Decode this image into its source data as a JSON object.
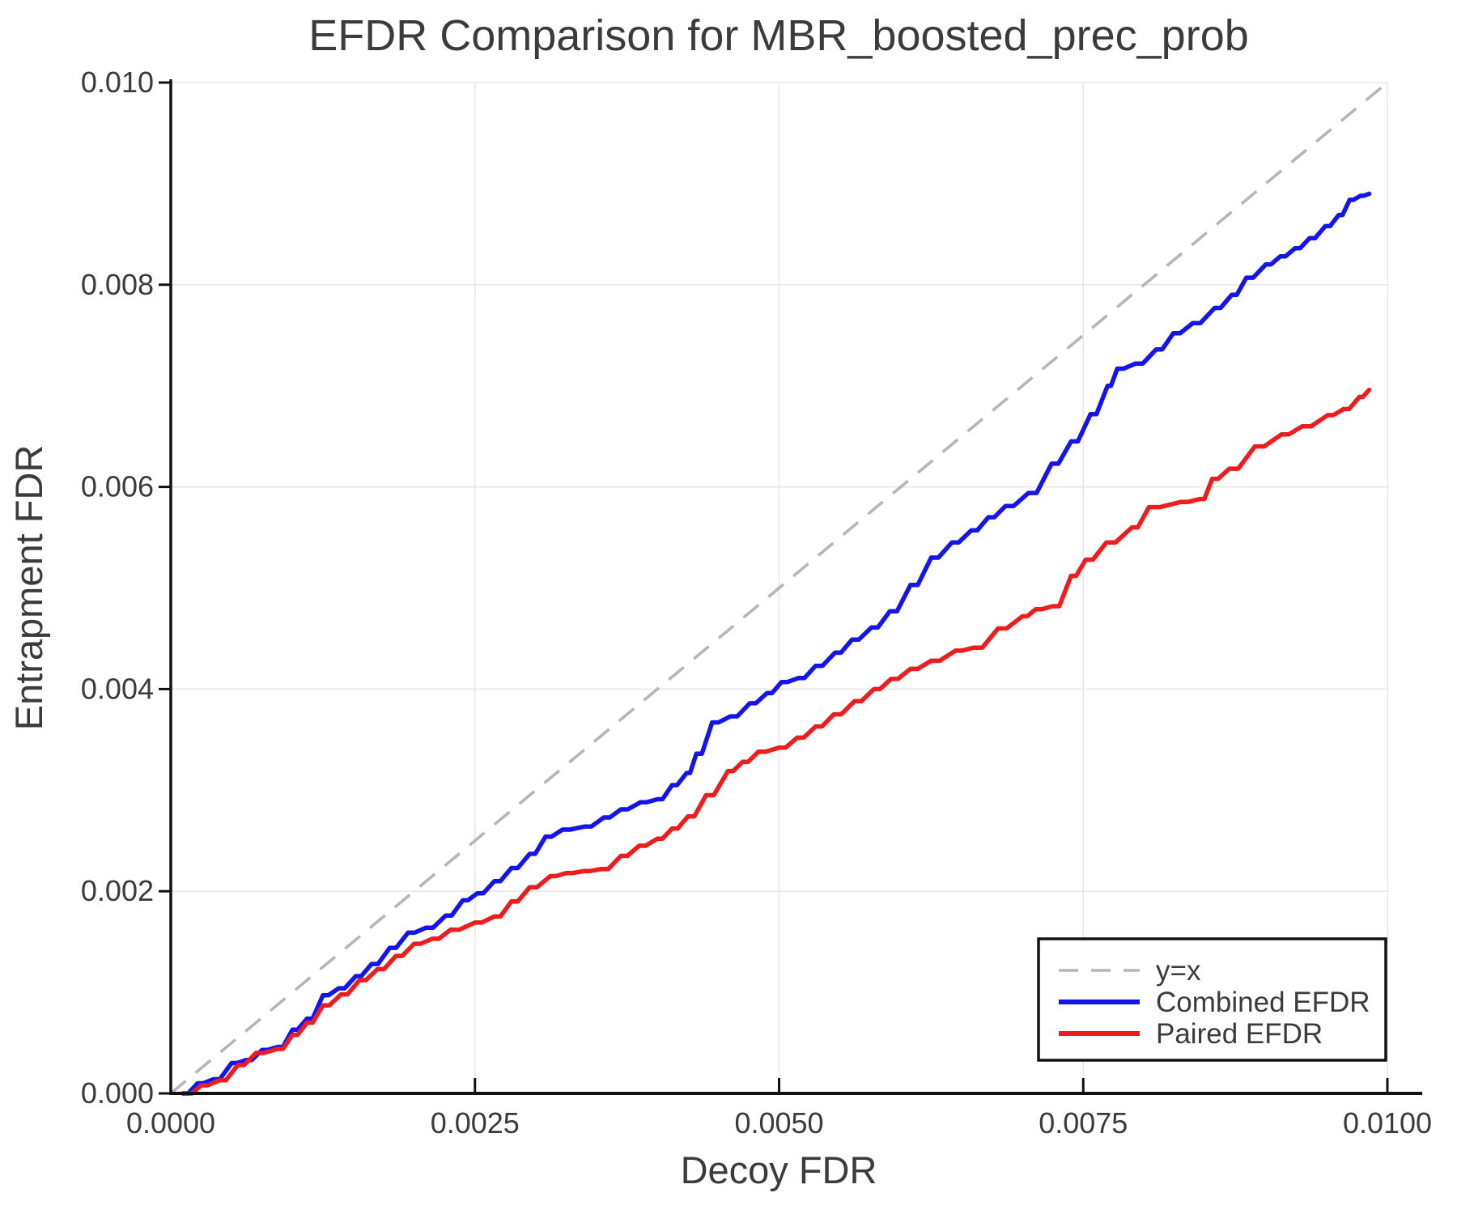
{
  "title": "EFDR Comparison for MBR_boosted_prec_prob",
  "colors": {
    "combined": "#1414ee",
    "paired": "#ee1c1c",
    "reference": "#b5b5b5",
    "grid": "#e8e8e8",
    "spine": "#111111",
    "text": "#3b3b3b"
  },
  "chart_data": {
    "type": "line",
    "title": "EFDR Comparison for MBR_boosted_prec_prob",
    "xlabel": "Decoy FDR",
    "ylabel": "Entrapment FDR",
    "xlim": [
      0.0,
      0.01
    ],
    "ylim": [
      0.0,
      0.01
    ],
    "grid": true,
    "legend_position": "lower right",
    "x_ticks": [
      0.0,
      0.0025,
      0.005,
      0.0075,
      0.01
    ],
    "x_tick_labels": [
      "0.0000",
      "0.0025",
      "0.0050",
      "0.0075",
      "0.0100"
    ],
    "y_ticks": [
      0.0,
      0.002,
      0.004,
      0.006,
      0.008,
      0.01
    ],
    "y_tick_labels": [
      "0.000",
      "0.002",
      "0.004",
      "0.006",
      "0.008",
      "0.010"
    ],
    "reference_line": {
      "label": "y=x",
      "style": "dashed",
      "color": "#b5b5b5",
      "points": [
        [
          0.0,
          0.0
        ],
        [
          0.01,
          0.01
        ]
      ]
    },
    "series": [
      {
        "name": "Combined EFDR",
        "color": "#1414ee",
        "points": [
          [
            0.0001,
            0.0
          ],
          [
            0.00022,
            0.0001
          ],
          [
            0.00035,
            0.00014
          ],
          [
            0.0005,
            0.0003
          ],
          [
            0.00062,
            0.00033
          ],
          [
            0.00075,
            0.00043
          ],
          [
            0.00088,
            0.00046
          ],
          [
            0.001,
            0.00063
          ],
          [
            0.00112,
            0.00074
          ],
          [
            0.00125,
            0.00097
          ],
          [
            0.00138,
            0.00104
          ],
          [
            0.00152,
            0.00116
          ],
          [
            0.00165,
            0.00128
          ],
          [
            0.0018,
            0.00144
          ],
          [
            0.00195,
            0.00159
          ],
          [
            0.0021,
            0.00164
          ],
          [
            0.00226,
            0.00176
          ],
          [
            0.0024,
            0.00191
          ],
          [
            0.00252,
            0.00198
          ],
          [
            0.00266,
            0.0021
          ],
          [
            0.0028,
            0.00223
          ],
          [
            0.00295,
            0.00237
          ],
          [
            0.00308,
            0.00254
          ],
          [
            0.00322,
            0.00261
          ],
          [
            0.0034,
            0.00264
          ],
          [
            0.00356,
            0.00273
          ],
          [
            0.0037,
            0.00281
          ],
          [
            0.00386,
            0.00288
          ],
          [
            0.004,
            0.00291
          ],
          [
            0.00412,
            0.00305
          ],
          [
            0.00424,
            0.00317
          ],
          [
            0.00432,
            0.00336
          ],
          [
            0.00445,
            0.00367
          ],
          [
            0.0046,
            0.00373
          ],
          [
            0.00476,
            0.00386
          ],
          [
            0.0049,
            0.00396
          ],
          [
            0.00502,
            0.00407
          ],
          [
            0.00516,
            0.00411
          ],
          [
            0.0053,
            0.00423
          ],
          [
            0.00546,
            0.00436
          ],
          [
            0.0056,
            0.00449
          ],
          [
            0.00576,
            0.00461
          ],
          [
            0.00591,
            0.00477
          ],
          [
            0.00608,
            0.00503
          ],
          [
            0.00625,
            0.0053
          ],
          [
            0.00642,
            0.00545
          ],
          [
            0.00658,
            0.00557
          ],
          [
            0.00672,
            0.0057
          ],
          [
            0.00686,
            0.00581
          ],
          [
            0.00705,
            0.00594
          ],
          [
            0.00724,
            0.00623
          ],
          [
            0.0074,
            0.00645
          ],
          [
            0.00756,
            0.00672
          ],
          [
            0.0077,
            0.007
          ],
          [
            0.00778,
            0.00717
          ],
          [
            0.00793,
            0.00722
          ],
          [
            0.0081,
            0.00736
          ],
          [
            0.00824,
            0.00752
          ],
          [
            0.0084,
            0.00762
          ],
          [
            0.00858,
            0.00777
          ],
          [
            0.00872,
            0.0079
          ],
          [
            0.00884,
            0.00807
          ],
          [
            0.009,
            0.0082
          ],
          [
            0.00912,
            0.00828
          ],
          [
            0.00924,
            0.00836
          ],
          [
            0.00936,
            0.00846
          ],
          [
            0.00949,
            0.00858
          ],
          [
            0.0096,
            0.00869
          ],
          [
            0.00969,
            0.00884
          ],
          [
            0.00978,
            0.00888
          ],
          [
            0.00985,
            0.0089
          ]
        ]
      },
      {
        "name": "Paired EFDR",
        "color": "#ee1c1c",
        "points": [
          [
            0.00013,
            0.0
          ],
          [
            0.00025,
            8e-05
          ],
          [
            0.0004,
            0.00013
          ],
          [
            0.00055,
            0.00028
          ],
          [
            0.0007,
            0.0004
          ],
          [
            0.00088,
            0.00044
          ],
          [
            0.001,
            0.00058
          ],
          [
            0.00112,
            0.0007
          ],
          [
            0.00125,
            0.00087
          ],
          [
            0.0014,
            0.00098
          ],
          [
            0.00155,
            0.00112
          ],
          [
            0.0017,
            0.00123
          ],
          [
            0.00185,
            0.00136
          ],
          [
            0.002,
            0.00148
          ],
          [
            0.00215,
            0.00153
          ],
          [
            0.0023,
            0.00162
          ],
          [
            0.0025,
            0.00169
          ],
          [
            0.00266,
            0.00175
          ],
          [
            0.0028,
            0.0019
          ],
          [
            0.00295,
            0.00204
          ],
          [
            0.00312,
            0.00215
          ],
          [
            0.00325,
            0.00218
          ],
          [
            0.0034,
            0.0022
          ],
          [
            0.00354,
            0.00222
          ],
          [
            0.0037,
            0.00235
          ],
          [
            0.00385,
            0.00245
          ],
          [
            0.004,
            0.00252
          ],
          [
            0.00412,
            0.00262
          ],
          [
            0.00425,
            0.00274
          ],
          [
            0.0044,
            0.00295
          ],
          [
            0.00458,
            0.00319
          ],
          [
            0.0047,
            0.00328
          ],
          [
            0.00483,
            0.00338
          ],
          [
            0.005,
            0.00342
          ],
          [
            0.00515,
            0.00352
          ],
          [
            0.0053,
            0.00363
          ],
          [
            0.00545,
            0.00375
          ],
          [
            0.00562,
            0.00388
          ],
          [
            0.00578,
            0.004
          ],
          [
            0.00592,
            0.0041
          ],
          [
            0.00608,
            0.0042
          ],
          [
            0.00625,
            0.00428
          ],
          [
            0.00645,
            0.00438
          ],
          [
            0.0066,
            0.00441
          ],
          [
            0.0068,
            0.0046
          ],
          [
            0.007,
            0.00472
          ],
          [
            0.00711,
            0.00479
          ],
          [
            0.00725,
            0.00482
          ],
          [
            0.0074,
            0.00512
          ],
          [
            0.00752,
            0.00528
          ],
          [
            0.00769,
            0.00545
          ],
          [
            0.0079,
            0.0056
          ],
          [
            0.00804,
            0.0058
          ],
          [
            0.0083,
            0.00585
          ],
          [
            0.00846,
            0.00588
          ],
          [
            0.00856,
            0.00608
          ],
          [
            0.0087,
            0.00618
          ],
          [
            0.00891,
            0.0064
          ],
          [
            0.00913,
            0.00652
          ],
          [
            0.0093,
            0.0066
          ],
          [
            0.00951,
            0.00671
          ],
          [
            0.00964,
            0.00677
          ],
          [
            0.00977,
            0.00689
          ],
          [
            0.00985,
            0.00696
          ]
        ]
      }
    ]
  }
}
